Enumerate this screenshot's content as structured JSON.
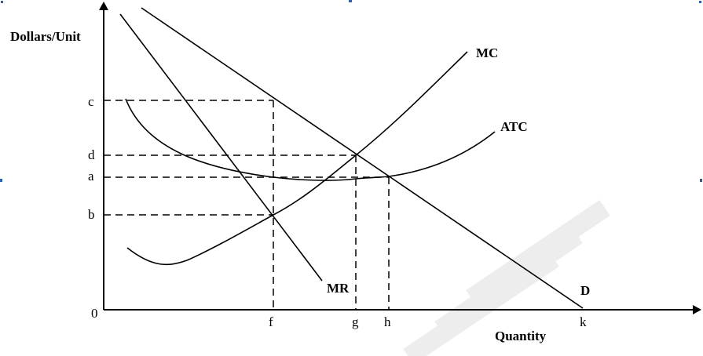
{
  "labels": {
    "y_axis_title": "Dollars/Unit",
    "x_axis_title": "Quantity",
    "origin": "0",
    "mc": "MC",
    "atc": "ATC",
    "mr": "MR",
    "demand": "D"
  },
  "y_ticks": [
    "c",
    "d",
    "a",
    "b"
  ],
  "x_ticks": [
    "f",
    "g",
    "h",
    "k"
  ],
  "colors": {
    "ink": "#000000",
    "background": "#ffffff",
    "watermark": "#ededed",
    "edge_marks": "#2e5fa6"
  }
}
